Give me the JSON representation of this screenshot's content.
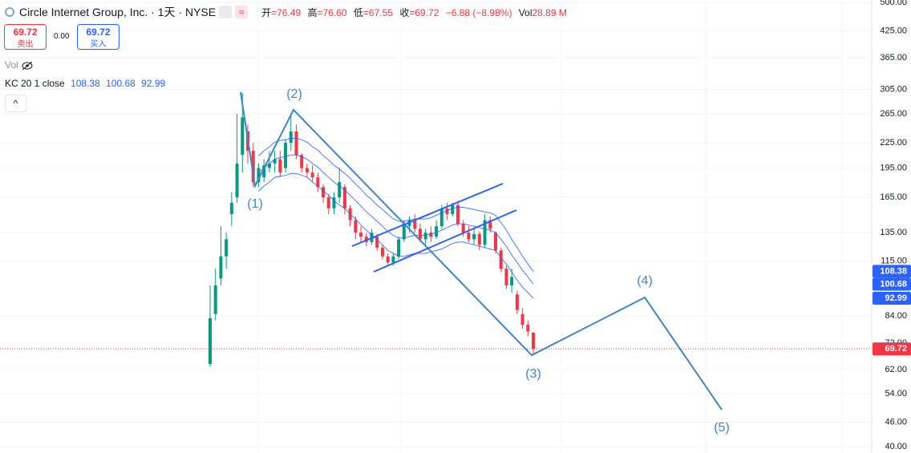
{
  "ui": {
    "title": "Circle Internet Group, Inc. · 1天 · NYSE",
    "toggle": "≈",
    "ohlc": [
      [
        "开",
        "=76.49"
      ],
      [
        "高",
        "=76.60"
      ],
      [
        "低",
        "=67.55"
      ],
      [
        "收",
        "=69.72"
      ]
    ],
    "change": "−6.88 (−8.98%)",
    "vol_key": "Vol",
    "vol": "28.89 M",
    "sell_price": "69.72",
    "sell_label": "卖出",
    "spread": "0.00",
    "buy_price": "69.72",
    "buy_label": "买入",
    "volume_pane": "Vol",
    "kc_title": "KC 20 1 close",
    "collapse": "^",
    "waves": [
      "(1)",
      "(2)",
      "(3)",
      "(4)",
      "(5)"
    ]
  },
  "chart_data": {
    "type": "candlestick",
    "log_scale": true,
    "grid": true,
    "ylim": [
      40,
      500
    ],
    "yticks": [
      {
        "value": 40,
        "label": "40.00"
      },
      {
        "value": 46,
        "label": "46.00"
      },
      {
        "value": 54,
        "label": "54.00"
      },
      {
        "value": 62,
        "label": "62.00"
      },
      {
        "value": 72,
        "label": "72.00"
      },
      {
        "value": 84,
        "label": "84.00"
      },
      {
        "value": 115,
        "label": "115.00"
      },
      {
        "value": 135,
        "label": "135.00"
      },
      {
        "value": 165,
        "label": "165.00"
      },
      {
        "value": 195,
        "label": "195.00"
      },
      {
        "value": 225,
        "label": "225.00"
      },
      {
        "value": 265,
        "label": "265.00"
      },
      {
        "value": 305,
        "label": "305.00"
      },
      {
        "value": 365,
        "label": "365.00"
      },
      {
        "value": 425,
        "label": "425.00"
      },
      {
        "value": 500,
        "label": "500.00"
      }
    ],
    "up_color": "#089981",
    "down_color": "#f23645",
    "kc_color": "#2962ff",
    "open": [
      64,
      85,
      104,
      118,
      150,
      165,
      210,
      240,
      215,
      180,
      185,
      195,
      200,
      205,
      195,
      225,
      240,
      210,
      195,
      190,
      185,
      175,
      165,
      155,
      165,
      175,
      155,
      145,
      135,
      132,
      128,
      132,
      124,
      118,
      114,
      118,
      130,
      140,
      145,
      138,
      130,
      135,
      132,
      140,
      155,
      150,
      158,
      142,
      135,
      130,
      134,
      126,
      145,
      135,
      122,
      110,
      100,
      95,
      85,
      80,
      76.49
    ],
    "high": [
      100,
      110,
      140,
      135,
      170,
      265,
      299,
      250,
      225,
      200,
      205,
      215,
      215,
      215,
      230,
      263,
      250,
      212,
      200,
      198,
      190,
      178,
      168,
      170,
      195,
      178,
      158,
      148,
      140,
      135,
      138,
      134,
      126,
      120,
      120,
      132,
      145,
      148,
      150,
      142,
      138,
      140,
      145,
      158,
      160,
      160,
      162,
      145,
      140,
      138,
      136,
      150,
      148,
      136,
      124,
      112,
      110,
      97,
      88,
      82,
      76.6
    ],
    "low": [
      63,
      82,
      100,
      110,
      140,
      160,
      190,
      200,
      175,
      175,
      180,
      190,
      190,
      185,
      190,
      215,
      205,
      190,
      185,
      180,
      170,
      160,
      150,
      150,
      160,
      150,
      140,
      130,
      128,
      125,
      126,
      122,
      116,
      112,
      112,
      116,
      128,
      135,
      135,
      128,
      126,
      128,
      130,
      138,
      145,
      148,
      140,
      132,
      128,
      126,
      122,
      124,
      135,
      120,
      108,
      98,
      96,
      85,
      78,
      75,
      67.55
    ],
    "close": [
      83,
      100,
      118,
      130,
      160,
      200,
      260,
      215,
      180,
      195,
      198,
      200,
      205,
      190,
      225,
      240,
      210,
      195,
      190,
      185,
      175,
      165,
      155,
      165,
      180,
      155,
      145,
      135,
      132,
      128,
      135,
      124,
      118,
      114,
      118,
      130,
      142,
      145,
      138,
      130,
      135,
      132,
      140,
      155,
      150,
      158,
      142,
      135,
      130,
      134,
      126,
      145,
      138,
      122,
      110,
      100,
      105,
      87,
      80,
      77,
      69.72
    ],
    "kc": {
      "upper": [
        null,
        null,
        null,
        null,
        null,
        null,
        null,
        null,
        null,
        209,
        215,
        220,
        226,
        228,
        229,
        231,
        231,
        229,
        226,
        220,
        216,
        209,
        204,
        198,
        194,
        189,
        184,
        178,
        173,
        167,
        163,
        158,
        154,
        150,
        146,
        144,
        144,
        145,
        146,
        146,
        146,
        147,
        149,
        151,
        153,
        155,
        156,
        156,
        155,
        154,
        153,
        152,
        151,
        149,
        143,
        137,
        130,
        124,
        118,
        113,
        108.38
      ],
      "middle": [
        null,
        null,
        null,
        null,
        null,
        null,
        null,
        null,
        null,
        190,
        195,
        200,
        205,
        207,
        208,
        210,
        210,
        208,
        205,
        200,
        196,
        190,
        185,
        180,
        176,
        172,
        167,
        162,
        157,
        152,
        148,
        144,
        140,
        136,
        133,
        131,
        131,
        132,
        133,
        133,
        133,
        134,
        135,
        137,
        139,
        141,
        142,
        142,
        141,
        140,
        139,
        138,
        137,
        135,
        130,
        125,
        119,
        114,
        109,
        105,
        100.68
      ],
      "lower": [
        null,
        null,
        null,
        null,
        null,
        null,
        null,
        null,
        null,
        171,
        176,
        180,
        185,
        186,
        187,
        189,
        189,
        187,
        185,
        180,
        176,
        171,
        167,
        162,
        158,
        155,
        150,
        146,
        141,
        137,
        133,
        130,
        126,
        122,
        120,
        118,
        118,
        119,
        120,
        120,
        120,
        121,
        122,
        123,
        125,
        127,
        128,
        128,
        127,
        126,
        125,
        124,
        123,
        122,
        117,
        113,
        108,
        103,
        99,
        96,
        92.99
      ]
    }
  }
}
